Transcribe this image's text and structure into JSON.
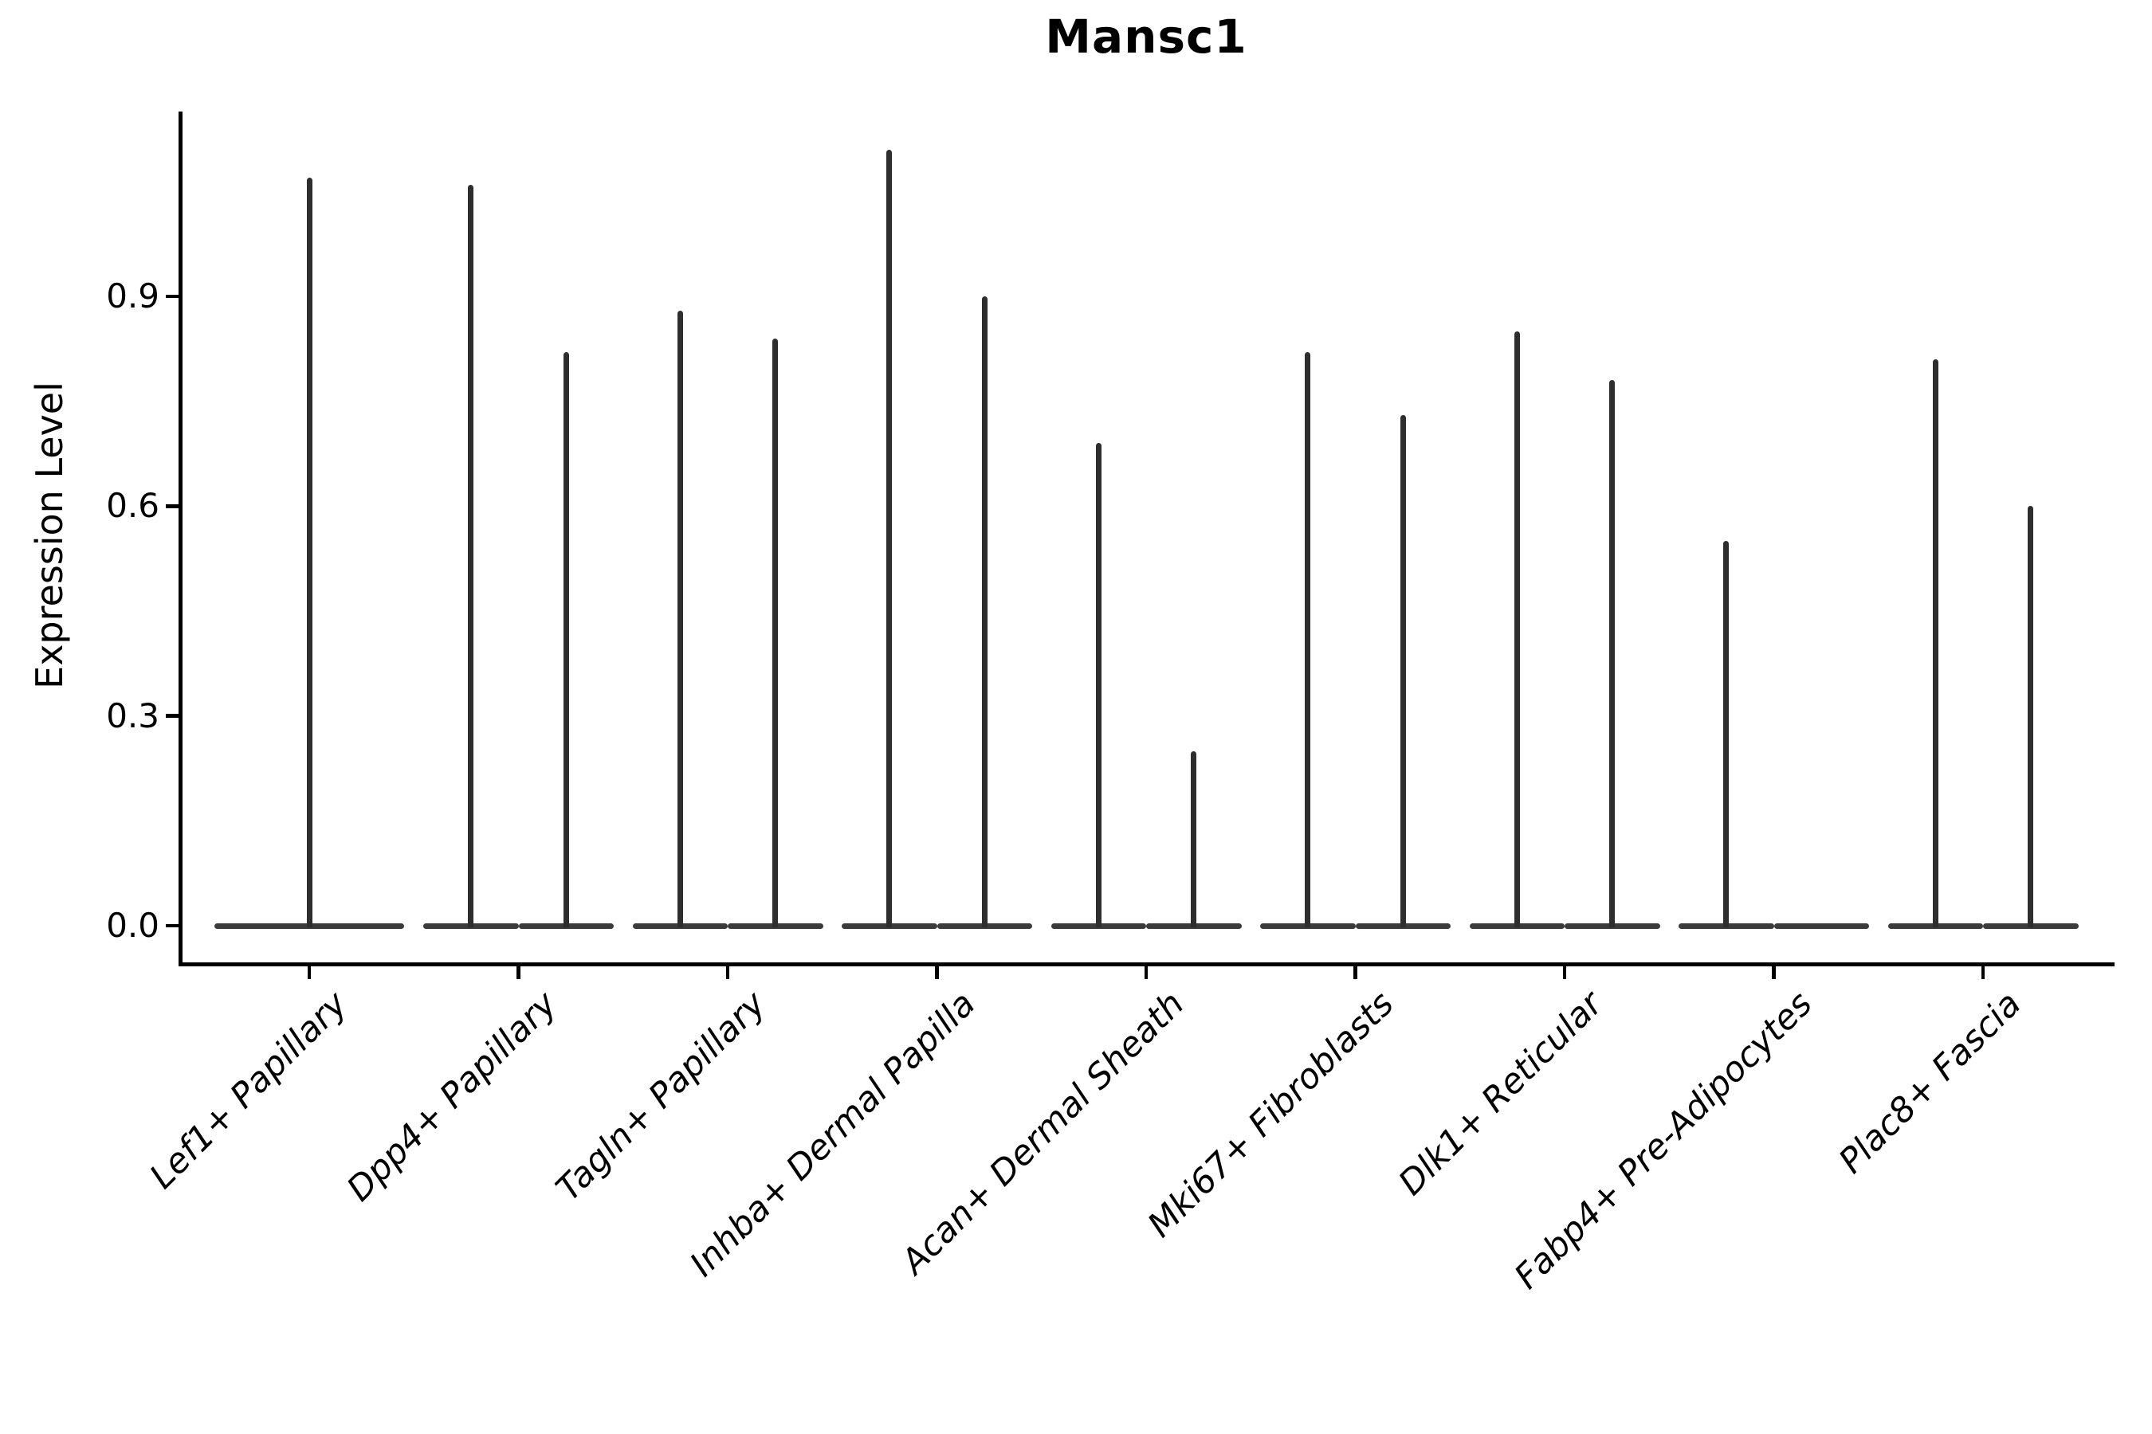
{
  "title": "Mansc1",
  "y_axis": {
    "label": "Expression Level",
    "tick_labels": [
      "0.0",
      "0.3",
      "0.6",
      "0.9"
    ]
  },
  "chart_data": {
    "type": "violin",
    "title": "Mansc1",
    "xlabel": "",
    "ylabel": "Expression Level",
    "ylim": [
      -0.06,
      1.16
    ],
    "ytick_values": [
      0.0,
      0.3,
      0.6,
      0.9
    ],
    "ytick_labels": [
      "0.0",
      "0.3",
      "0.6",
      "0.9"
    ],
    "grid": false,
    "legend": "none",
    "x_label_rotation_degrees": 45,
    "categories": [
      "Lef1+ Papillary",
      "Dpp4+ Papillary",
      "Tagln+ Papillary",
      "Inhba+ Dermal Papilla",
      "Acan+ Dermal Sheath",
      "Mki67+ Fibroblasts",
      "Dlk1+ Reticular",
      "Fabp4+ Pre-Adipocytes",
      "Plac8+ Fascia"
    ],
    "violins": [
      {
        "category": "Lef1+ Papillary",
        "peaks": [
          1.07
        ]
      },
      {
        "category": "Dpp4+ Papillary",
        "peaks": [
          1.06,
          0.82
        ]
      },
      {
        "category": "Tagln+ Papillary",
        "peaks": [
          0.88,
          0.84
        ]
      },
      {
        "category": "Inhba+ Dermal Papilla",
        "peaks": [
          1.11,
          0.9
        ]
      },
      {
        "category": "Acan+ Dermal Sheath",
        "peaks": [
          0.69,
          0.25
        ]
      },
      {
        "category": "Mki67+ Fibroblasts",
        "peaks": [
          0.82,
          0.73
        ]
      },
      {
        "category": "Dlk1+ Reticular",
        "peaks": [
          0.85,
          0.78
        ]
      },
      {
        "category": "Fabp4+ Pre-Adipocytes",
        "peaks": [
          0.55,
          0.0
        ]
      },
      {
        "category": "Plac8+ Fascia",
        "peaks": [
          0.81,
          0.6
        ]
      }
    ],
    "colors": {
      "spike": "#2e2e2e",
      "base": "#3b3b3b",
      "axis": "#000000",
      "background": "#ffffff"
    }
  }
}
